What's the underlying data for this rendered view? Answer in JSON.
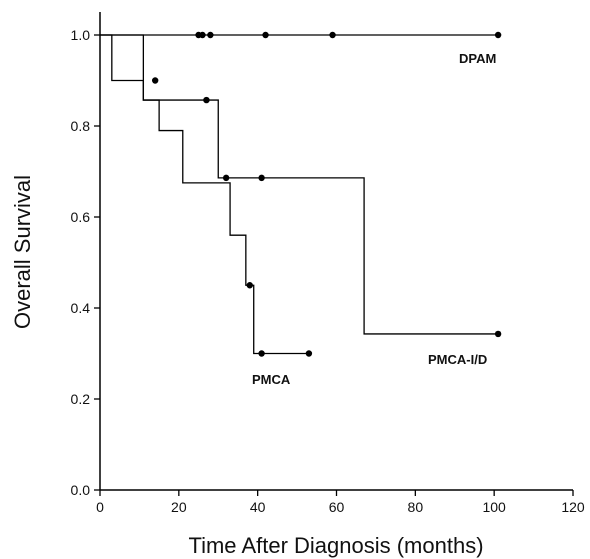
{
  "chart_data": {
    "type": "line",
    "step": true,
    "xlabel": "Time After Diagnosis (months)",
    "ylabel": "Overall Survival",
    "xlim": [
      0,
      120
    ],
    "ylim": [
      0.0,
      1.05
    ],
    "x_ticks": [
      0,
      20,
      40,
      60,
      80,
      100,
      120
    ],
    "y_ticks": [
      "0.0",
      "0.2",
      "0.4",
      "0.6",
      "0.8",
      "1.0"
    ],
    "y_tick_values": [
      0.0,
      0.2,
      0.4,
      0.6,
      0.8,
      1.0
    ],
    "grid": false,
    "series": [
      {
        "name": "DPAM",
        "label": "DPAM",
        "steps": [
          [
            0,
            1.0
          ],
          [
            101,
            1.0
          ]
        ],
        "censored": [
          [
            25,
            1.0
          ],
          [
            26,
            1.0
          ],
          [
            28,
            1.0
          ],
          [
            42,
            1.0
          ],
          [
            59,
            1.0
          ],
          [
            101,
            1.0
          ]
        ]
      },
      {
        "name": "PMCA",
        "label": "PMCA",
        "steps": [
          [
            0,
            1.0
          ],
          [
            3,
            0.9
          ],
          [
            11,
            0.857
          ],
          [
            15,
            0.79
          ],
          [
            21,
            0.675
          ],
          [
            33,
            0.56
          ],
          [
            37,
            0.45
          ],
          [
            39,
            0.3
          ],
          [
            53,
            0.3
          ]
        ],
        "censored": [
          [
            14,
            0.9
          ],
          [
            38,
            0.45
          ],
          [
            41,
            0.3
          ],
          [
            53,
            0.3
          ]
        ]
      },
      {
        "name": "PMCA-I/D",
        "label": "PMCA-I/D",
        "steps": [
          [
            0,
            1.0
          ],
          [
            11,
            1.0
          ],
          [
            11,
            0.857
          ],
          [
            30,
            0.686
          ],
          [
            67,
            0.343
          ],
          [
            101,
            0.343
          ]
        ],
        "censored": [
          [
            27,
            0.857
          ],
          [
            32,
            0.686
          ],
          [
            41,
            0.686
          ],
          [
            101,
            0.343
          ]
        ]
      }
    ]
  }
}
